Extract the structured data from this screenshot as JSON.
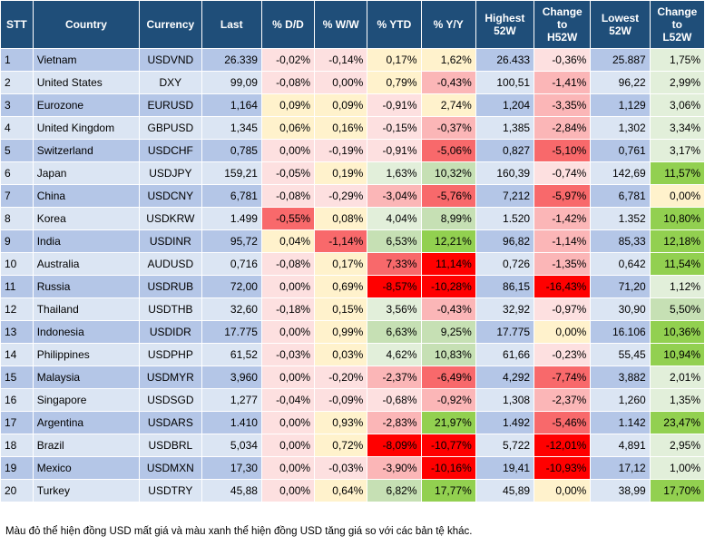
{
  "headers": [
    "STT",
    "Country",
    "Currency",
    "Last",
    "% D/D",
    "% W/W",
    "% YTD",
    "% Y/Y",
    "Highest 52W",
    "Change to H52W",
    "Lowest 52W",
    "Change to L52W"
  ],
  "colors": {
    "header_bg": "#1f4e79",
    "row_odd": "#b4c6e7",
    "row_even": "#dbe5f3",
    "red_strong": "#ff0000",
    "red_mid": "#f8696b",
    "red_light": "#fbb6b7",
    "pink_pale": "#fde0e0",
    "yellow_pale": "#fff2cc",
    "green_pale": "#e2efda",
    "green_light": "#c6e0b4",
    "green_strong": "#92d050"
  },
  "rows": [
    {
      "stt": "1",
      "country": "Vietnam",
      "currency": "USDVND",
      "last": "26.339",
      "dd": "-0,02%",
      "ww": "-0,14%",
      "ytd": "0,17%",
      "yy": "1,62%",
      "h52": "26.433",
      "ch52": "-0,36%",
      "l52": "25.887",
      "cl52": "1,75%"
    },
    {
      "stt": "2",
      "country": "United States",
      "currency": "DXY",
      "last": "99,09",
      "dd": "-0,08%",
      "ww": "0,00%",
      "ytd": "0,79%",
      "yy": "-0,43%",
      "h52": "100,51",
      "ch52": "-1,41%",
      "l52": "96,22",
      "cl52": "2,99%"
    },
    {
      "stt": "3",
      "country": "Eurozone",
      "currency": "EURUSD",
      "last": "1,164",
      "dd": "0,09%",
      "ww": "0,09%",
      "ytd": "-0,91%",
      "yy": "2,74%",
      "h52": "1,204",
      "ch52": "-3,35%",
      "l52": "1,129",
      "cl52": "3,06%"
    },
    {
      "stt": "4",
      "country": "United Kingdom",
      "currency": "GBPUSD",
      "last": "1,345",
      "dd": "0,06%",
      "ww": "0,16%",
      "ytd": "-0,15%",
      "yy": "-0,37%",
      "h52": "1,385",
      "ch52": "-2,84%",
      "l52": "1,302",
      "cl52": "3,34%"
    },
    {
      "stt": "5",
      "country": "Switzerland",
      "currency": "USDCHF",
      "last": "0,785",
      "dd": "0,00%",
      "ww": "-0,19%",
      "ytd": "-0,91%",
      "yy": "-5,06%",
      "h52": "0,827",
      "ch52": "-5,10%",
      "l52": "0,761",
      "cl52": "3,17%"
    },
    {
      "stt": "6",
      "country": "Japan",
      "currency": "USDJPY",
      "last": "159,21",
      "dd": "-0,05%",
      "ww": "0,19%",
      "ytd": "1,63%",
      "yy": "10,32%",
      "h52": "160,39",
      "ch52": "-0,74%",
      "l52": "142,69",
      "cl52": "11,57%"
    },
    {
      "stt": "7",
      "country": "China",
      "currency": "USDCNY",
      "last": "6,781",
      "dd": "-0,08%",
      "ww": "-0,29%",
      "ytd": "-3,04%",
      "yy": "-5,76%",
      "h52": "7,212",
      "ch52": "-5,97%",
      "l52": "6,781",
      "cl52": "0,00%"
    },
    {
      "stt": "8",
      "country": "Korea",
      "currency": "USDKRW",
      "last": "1.499",
      "dd": "-0,55%",
      "ww": "0,08%",
      "ytd": "4,04%",
      "yy": "8,99%",
      "h52": "1.520",
      "ch52": "-1,42%",
      "l52": "1.352",
      "cl52": "10,80%"
    },
    {
      "stt": "9",
      "country": "India",
      "currency": "USDINR",
      "last": "95,72",
      "dd": "0,04%",
      "ww": "-1,14%",
      "ytd": "6,53%",
      "yy": "12,21%",
      "h52": "96,82",
      "ch52": "-1,14%",
      "l52": "85,33",
      "cl52": "12,18%"
    },
    {
      "stt": "10",
      "country": "Australia",
      "currency": "AUDUSD",
      "last": "0,716",
      "dd": "-0,08%",
      "ww": "0,17%",
      "ytd": "7,33%",
      "yy": "11,14%",
      "h52": "0,726",
      "ch52": "-1,35%",
      "l52": "0,642",
      "cl52": "11,54%"
    },
    {
      "stt": "11",
      "country": "Russia",
      "currency": "USDRUB",
      "last": "72,00",
      "dd": "0,00%",
      "ww": "0,69%",
      "ytd": "-8,57%",
      "yy": "-10,28%",
      "h52": "86,15",
      "ch52": "-16,43%",
      "l52": "71,20",
      "cl52": "1,12%"
    },
    {
      "stt": "12",
      "country": "Thailand",
      "currency": "USDTHB",
      "last": "32,60",
      "dd": "-0,18%",
      "ww": "0,15%",
      "ytd": "3,56%",
      "yy": "-0,43%",
      "h52": "32,92",
      "ch52": "-0,97%",
      "l52": "30,90",
      "cl52": "5,50%"
    },
    {
      "stt": "13",
      "country": "Indonesia",
      "currency": "USDIDR",
      "last": "17.775",
      "dd": "0,00%",
      "ww": "0,99%",
      "ytd": "6,63%",
      "yy": "9,25%",
      "h52": "17.775",
      "ch52": "0,00%",
      "l52": "16.106",
      "cl52": "10,36%"
    },
    {
      "stt": "14",
      "country": "Philippines",
      "currency": "USDPHP",
      "last": "61,52",
      "dd": "-0,03%",
      "ww": "0,03%",
      "ytd": "4,62%",
      "yy": "10,83%",
      "h52": "61,66",
      "ch52": "-0,23%",
      "l52": "55,45",
      "cl52": "10,94%"
    },
    {
      "stt": "15",
      "country": "Malaysia",
      "currency": "USDMYR",
      "last": "3,960",
      "dd": "0,00%",
      "ww": "-0,20%",
      "ytd": "-2,37%",
      "yy": "-6,49%",
      "h52": "4,292",
      "ch52": "-7,74%",
      "l52": "3,882",
      "cl52": "2,01%"
    },
    {
      "stt": "16",
      "country": "Singapore",
      "currency": "USDSGD",
      "last": "1,277",
      "dd": "-0,04%",
      "ww": "-0,09%",
      "ytd": "-0,68%",
      "yy": "-0,92%",
      "h52": "1,308",
      "ch52": "-2,37%",
      "l52": "1,260",
      "cl52": "1,35%"
    },
    {
      "stt": "17",
      "country": "Argentina",
      "currency": "USDARS",
      "last": "1.410",
      "dd": "0,00%",
      "ww": "0,93%",
      "ytd": "-2,83%",
      "yy": "21,97%",
      "h52": "1.492",
      "ch52": "-5,46%",
      "l52": "1.142",
      "cl52": "23,47%"
    },
    {
      "stt": "18",
      "country": "Brazil",
      "currency": "USDBRL",
      "last": "5,034",
      "dd": "0,00%",
      "ww": "0,72%",
      "ytd": "-8,09%",
      "yy": "-10,77%",
      "h52": "5,722",
      "ch52": "-12,01%",
      "l52": "4,891",
      "cl52": "2,95%"
    },
    {
      "stt": "19",
      "country": "Mexico",
      "currency": "USDMXN",
      "last": "17,30",
      "dd": "0,00%",
      "ww": "-0,03%",
      "ytd": "-3,90%",
      "yy": "-10,16%",
      "h52": "19,41",
      "ch52": "-10,93%",
      "l52": "17,12",
      "cl52": "1,00%"
    },
    {
      "stt": "20",
      "country": "Turkey",
      "currency": "USDTRY",
      "last": "45,88",
      "dd": "0,00%",
      "ww": "0,64%",
      "ytd": "6,82%",
      "yy": "17,77%",
      "h52": "45,89",
      "ch52": "0,00%",
      "l52": "38,99",
      "cl52": "17,70%"
    }
  ],
  "note": "Màu đỏ thể hiện đồng USD mất giá và màu xanh thể hiện đồng USD tăng giá so với các bản tệ khác."
}
